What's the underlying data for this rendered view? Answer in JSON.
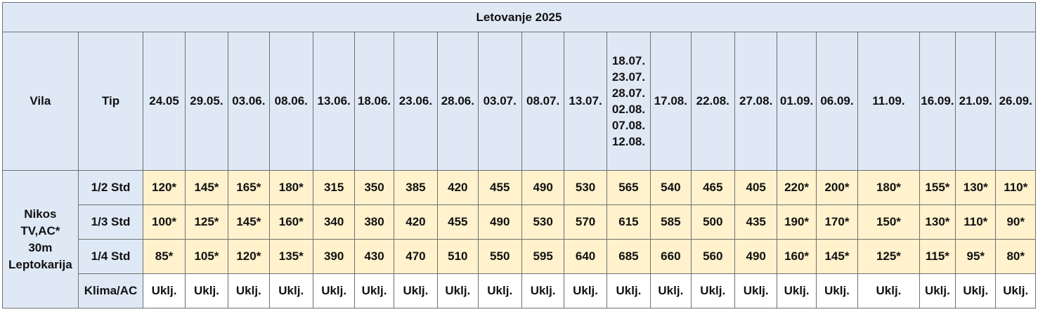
{
  "title": "Letovanje 2025",
  "header": {
    "vila": "Vila",
    "tip": "Tip",
    "dates": [
      "24.05",
      "29.05.",
      "03.06.",
      "08.06.",
      "13.06.",
      "18.06.",
      "23.06.",
      "28.06.",
      "03.07.",
      "08.07.",
      "13.07.",
      "18.07.\n23.07.\n28.07.\n02.08.\n07.08.\n12.08.",
      "17.08.",
      "22.08.",
      "27.08.",
      "01.09.",
      "06.09.",
      "11.09.",
      "16.09.",
      "21.09.",
      "26.09."
    ]
  },
  "villa": {
    "line1": "Nikos",
    "line2": "TV,AC*",
    "line3": "30m",
    "line4": "Leptokarija"
  },
  "rows": [
    {
      "type": "1/2 Std",
      "prices": [
        "120*",
        "145*",
        "165*",
        "180*",
        "315",
        "350",
        "385",
        "420",
        "455",
        "490",
        "530",
        "565",
        "540",
        "465",
        "405",
        "220*",
        "200*",
        "180*",
        "155*",
        "130*",
        "110*"
      ]
    },
    {
      "type": "1/3 Std",
      "prices": [
        "100*",
        "125*",
        "145*",
        "160*",
        "340",
        "380",
        "420",
        "455",
        "490",
        "530",
        "570",
        "615",
        "585",
        "500",
        "435",
        "190*",
        "170*",
        "150*",
        "130*",
        "110*",
        "90*"
      ]
    },
    {
      "type": "1/4 Std",
      "prices": [
        "85*",
        "105*",
        "120*",
        "135*",
        "390",
        "430",
        "470",
        "510",
        "550",
        "595",
        "640",
        "685",
        "660",
        "560",
        "490",
        "160*",
        "145*",
        "125*",
        "115*",
        "95*",
        "80*"
      ]
    },
    {
      "type": "Klima/AC",
      "prices": [
        "Uklj.",
        "Uklj.",
        "Uklj.",
        "Uklj.",
        "Uklj.",
        "Uklj.",
        "Uklj.",
        "Uklj.",
        "Uklj.",
        "Uklj.",
        "Uklj.",
        "Uklj.",
        "Uklj.",
        "Uklj.",
        "Uklj.",
        "Uklj.",
        "Uklj.",
        "Uklj.",
        "Uklj.",
        "Uklj.",
        "Uklj."
      ]
    }
  ]
}
